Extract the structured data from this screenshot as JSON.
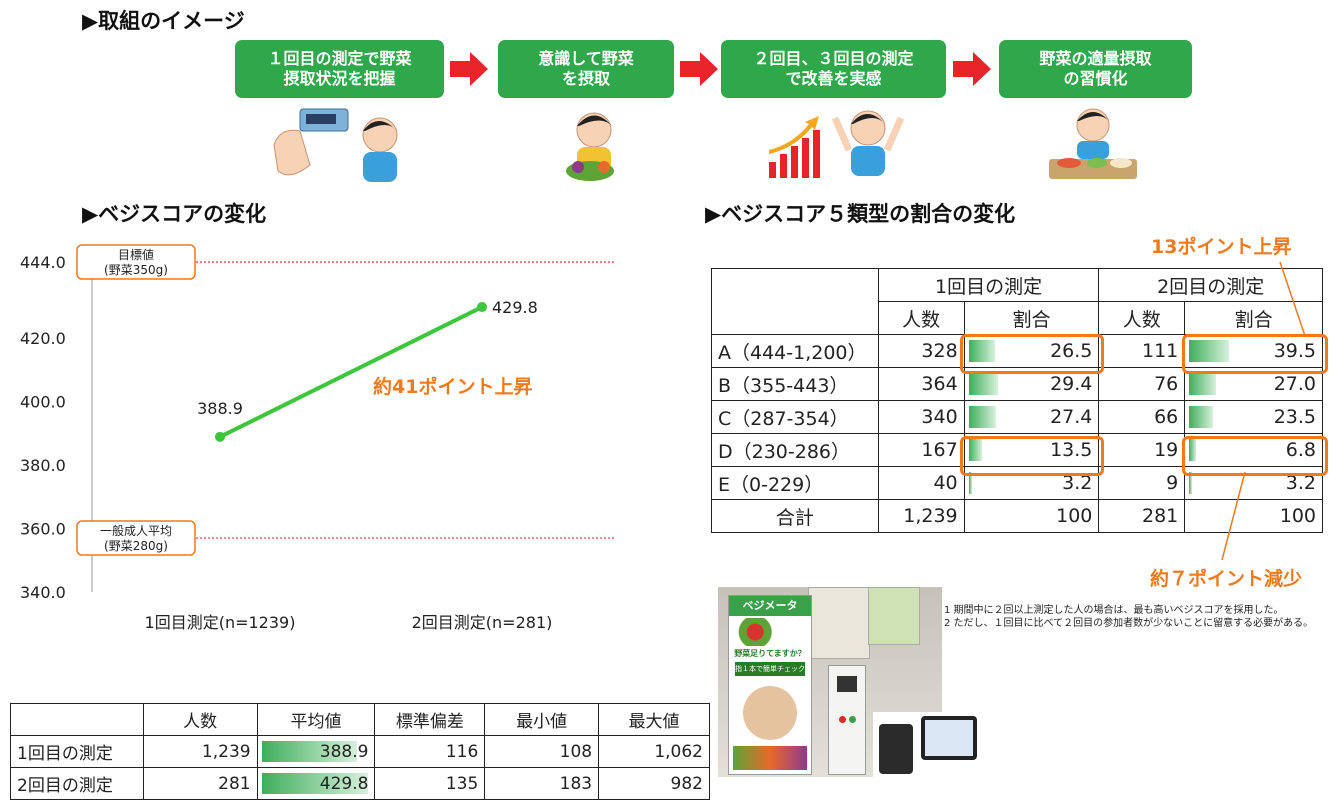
{
  "sections": {
    "flow_title": "▶取組のイメージ",
    "line_title": "▶ベジスコアの変化",
    "table_title": "▶ベジスコア５類型の割合の変化"
  },
  "flow_steps": [
    "１回目の測定で野菜\n摂取状況を把握",
    "意識して野菜\nを摂取",
    "２回目、３回目の測定\nで改善を実感",
    "野菜の適量摂取\nの習慣化"
  ],
  "chart_data": {
    "type": "line",
    "categories": [
      "1回目測定(n=1239)",
      "2回目測定(n=281)"
    ],
    "values": [
      388.9,
      429.8
    ],
    "ylim": [
      340,
      444
    ],
    "yticks": [
      340,
      360,
      380,
      400,
      420,
      444
    ],
    "ytick_labels": [
      "340.0",
      "360.0",
      "380.0",
      "400.0",
      "420.0",
      "444.0"
    ],
    "reference_lines": [
      {
        "value": 444,
        "label_lines": [
          "目標値",
          "(野菜350g)"
        ]
      },
      {
        "value": 357,
        "label_lines": [
          "一般成人平均",
          "(野菜280g)"
        ]
      }
    ],
    "annotation": "約41ポイント上昇",
    "colors": {
      "line": "#3cc63c",
      "ref": "#e8383d",
      "accent": "#f07a1a"
    }
  },
  "category_table": {
    "group_headers": [
      "1回目の測定",
      "2回目の測定"
    ],
    "sub_headers": [
      "人数",
      "割合",
      "人数",
      "割合"
    ],
    "rows": [
      {
        "label": "A（444-1,200）",
        "n1": "328",
        "p1": "26.5",
        "n2": "111",
        "p2": "39.5"
      },
      {
        "label": "B（355-443）",
        "n1": "364",
        "p1": "29.4",
        "n2": "76",
        "p2": "27.0"
      },
      {
        "label": "C（287-354）",
        "n1": "340",
        "p1": "27.4",
        "n2": "66",
        "p2": "23.5"
      },
      {
        "label": "D（230-286）",
        "n1": "167",
        "p1": "13.5",
        "n2": "19",
        "p2": "6.8"
      },
      {
        "label": "E（0-229）",
        "n1": "40",
        "p1": "3.2",
        "n2": "9",
        "p2": "3.2"
      }
    ],
    "total": {
      "label": "合計",
      "n1": "1,239",
      "p1": "100",
      "n2": "281",
      "p2": "100"
    },
    "note_up": "13ポイント上昇",
    "note_down": "約７ポイント減少"
  },
  "stats_table": {
    "headers": [
      "人数",
      "平均値",
      "標準偏差",
      "最小値",
      "最大値"
    ],
    "rows": [
      {
        "label": "1回目の測定",
        "n": "1,239",
        "mean": "388.9",
        "sd": "116",
        "min": "108",
        "max": "1,062",
        "mean_value": 388.9
      },
      {
        "label": "2回目の測定",
        "n": "281",
        "mean": "429.8",
        "sd": "135",
        "min": "183",
        "max": "982",
        "mean_value": 429.8
      }
    ]
  },
  "photo": {
    "banner": "ベジメータ",
    "question": "野菜足りてますか？",
    "sub": "指１本で簡単チェック"
  },
  "footnotes": [
    "1  期間中に２回以上測定した人の場合は、最も高いベジスコアを採用した。",
    "2  ただし、１回目に比べて２回目の参加者数が少ないことに留意する必要がある。"
  ]
}
